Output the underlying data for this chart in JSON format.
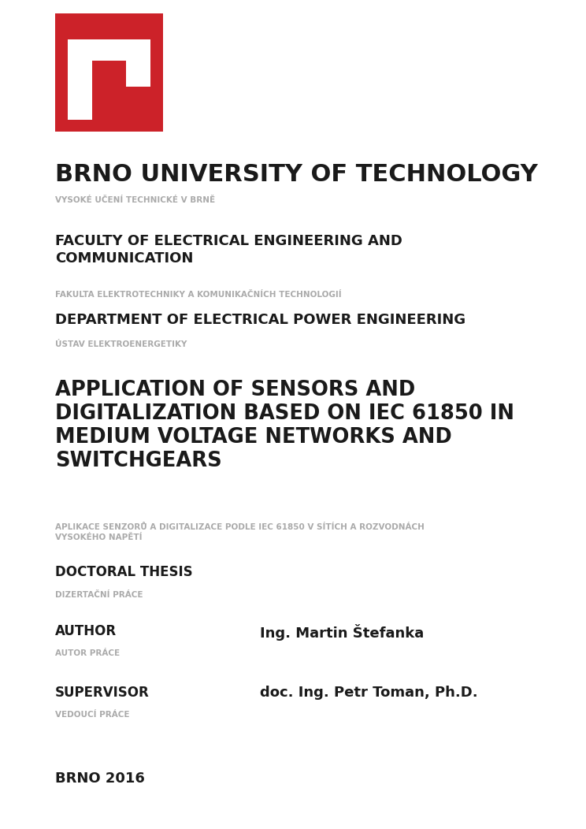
{
  "bg_color": "#ffffff",
  "logo_color": "#cc2229",
  "text_color_dark": "#1a1a1a",
  "text_color_gray": "#aaaaaa",
  "university_name": "BRNO UNIVERSITY OF TECHNOLOGY",
  "university_name_cz": "VYSOKÉ UČENÍ TECHNICKÉ V BRNĚ",
  "faculty_name": "FACULTY OF ELECTRICAL ENGINEERING AND\nCOMMUNICATION",
  "faculty_name_cz": "FAKULTA ELEKTROTECHNIKY A KOMUNIKAČNÍCH TECHNOLOGIÍ",
  "department_name": "DEPARTMENT OF ELECTRICAL POWER ENGINEERING",
  "department_name_cz": "ÚSTAV ELEKTROENERGETIKY",
  "thesis_title_en_lines": [
    "APPLICATION OF SENSORS AND",
    "DIGITALIZATION BASED ON IEC 61850 IN",
    "MEDIUM VOLTAGE NETWORKS AND",
    "SWITCHGEARS"
  ],
  "thesis_title_cz": "APLIKACE SENZORŮ A DIGITALIZACE PODLE IEC 61850 V SÍTÍCH A ROZVODNÁCH\nVYSOKÉHO NAPĚTÍ",
  "thesis_type_en": "DOCTORAL THESIS",
  "thesis_type_cz": "DIZERTAČNÍ PRÁCE",
  "author_label_en": "AUTHOR",
  "author_label_cz": "AUTOR PRÁCE",
  "author_name": "Ing. Martin Štefanka",
  "supervisor_label_en": "SUPERVISOR",
  "supervisor_label_cz": "VEDOUCÍ PRÁCE",
  "supervisor_name": "doc. Ing. Petr Toman, Ph.D.",
  "location_year": "BRNO 2016"
}
